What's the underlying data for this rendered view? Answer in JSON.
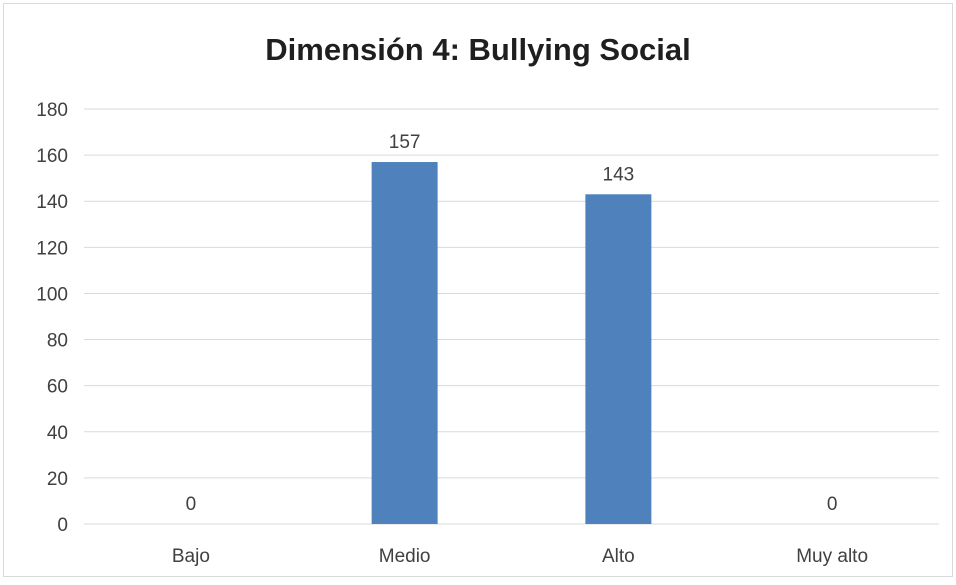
{
  "chart_data": {
    "type": "bar",
    "title": "Dimensión 4: Bullying Social",
    "categories": [
      "Bajo",
      "Medio",
      "Alto",
      "Muy alto"
    ],
    "values": [
      0,
      157,
      143,
      0
    ],
    "data_labels": [
      "0",
      "157",
      "143",
      "0"
    ],
    "ylim": [
      0,
      180
    ],
    "yticks": [
      "0",
      "20",
      "40",
      "60",
      "80",
      "100",
      "120",
      "140",
      "160",
      "180"
    ],
    "grid": true,
    "legend": "none",
    "bar_color": "#4f81bd",
    "grid_color": "#d9d9d9"
  }
}
